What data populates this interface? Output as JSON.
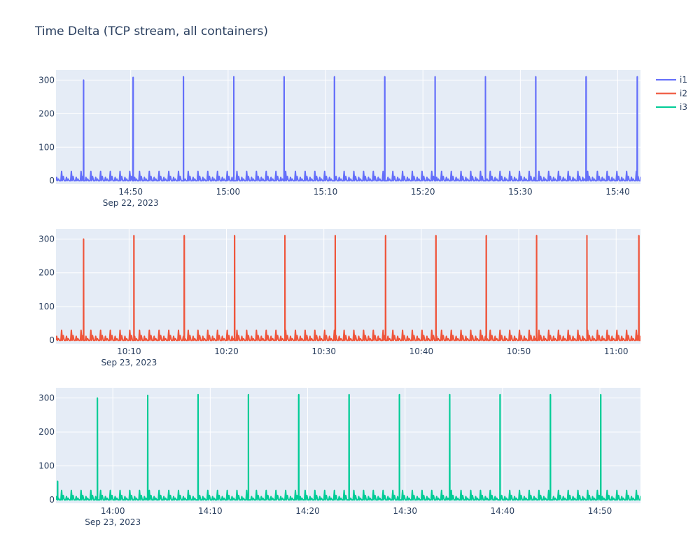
{
  "title": "Time Delta (TCP stream, all containers)",
  "colors": {
    "plot_bg": "#e5ecf6",
    "grid": "#ffffff",
    "text": "#2a3f5f",
    "series": [
      "#636efa",
      "#ef553b",
      "#00cc96"
    ]
  },
  "legend": {
    "placement": "top-right",
    "items": [
      {
        "name": "i1",
        "color": "#636efa"
      },
      {
        "name": "i2",
        "color": "#ef553b"
      },
      {
        "name": "i3",
        "color": "#00cc96"
      }
    ]
  },
  "chart_data": [
    {
      "type": "line",
      "series_name": "i1",
      "color": "#636efa",
      "date_label": "Sep 22, 2023",
      "x_range": [
        "14:42:20",
        "15:42:20"
      ],
      "x_ticks": [
        "14:50",
        "15:00",
        "15:10",
        "15:20",
        "15:30",
        "15:40"
      ],
      "y_ticks": [
        0,
        100,
        200,
        300
      ],
      "ylim": [
        -10,
        330
      ],
      "grid": true,
      "baseline_pattern": {
        "low": 0,
        "high": [
          10,
          28
        ],
        "period_seconds": 30
      },
      "spikes": [
        {
          "x": "14:45:10",
          "y": 300
        },
        {
          "x": "14:50:15",
          "y": 308
        },
        {
          "x": "14:55:25",
          "y": 310
        },
        {
          "x": "15:00:35",
          "y": 310
        },
        {
          "x": "15:05:45",
          "y": 310
        },
        {
          "x": "15:10:55",
          "y": 310
        },
        {
          "x": "15:16:05",
          "y": 310
        },
        {
          "x": "15:21:15",
          "y": 310
        },
        {
          "x": "15:26:25",
          "y": 310
        },
        {
          "x": "15:31:35",
          "y": 310
        },
        {
          "x": "15:36:45",
          "y": 310
        },
        {
          "x": "15:42:00",
          "y": 310
        }
      ]
    },
    {
      "type": "line",
      "series_name": "i2",
      "color": "#ef553b",
      "date_label": "Sep 23, 2023",
      "x_range": [
        "10:02:30",
        "11:02:30"
      ],
      "x_ticks": [
        "10:10",
        "10:20",
        "10:30",
        "10:40",
        "10:50",
        "11:00"
      ],
      "y_ticks": [
        0,
        100,
        200,
        300
      ],
      "ylim": [
        -10,
        330
      ],
      "grid": true,
      "baseline_pattern": {
        "low": 0,
        "high": [
          12,
          30
        ],
        "period_seconds": 30
      },
      "spikes": [
        {
          "x": "10:05:20",
          "y": 300
        },
        {
          "x": "10:10:30",
          "y": 310
        },
        {
          "x": "10:15:40",
          "y": 310
        },
        {
          "x": "10:20:50",
          "y": 310
        },
        {
          "x": "10:26:00",
          "y": 310
        },
        {
          "x": "10:31:10",
          "y": 310
        },
        {
          "x": "10:36:20",
          "y": 310
        },
        {
          "x": "10:41:30",
          "y": 310
        },
        {
          "x": "10:46:40",
          "y": 310
        },
        {
          "x": "10:51:50",
          "y": 310
        },
        {
          "x": "10:57:00",
          "y": 310
        },
        {
          "x": "11:02:20",
          "y": 310
        }
      ]
    },
    {
      "type": "line",
      "series_name": "i3",
      "color": "#00cc96",
      "date_label": "Sep 23, 2023",
      "x_range": [
        "13:54:10",
        "14:54:10"
      ],
      "x_ticks": [
        "14:00",
        "14:10",
        "14:20",
        "14:30",
        "14:40",
        "14:50"
      ],
      "y_ticks": [
        0,
        100,
        200,
        300
      ],
      "ylim": [
        -10,
        330
      ],
      "grid": true,
      "baseline_pattern": {
        "low": 0,
        "high": [
          10,
          28
        ],
        "period_seconds": 30
      },
      "spikes": [
        {
          "x": "13:54:20",
          "y": 55
        },
        {
          "x": "13:58:25",
          "y": 300
        },
        {
          "x": "14:03:35",
          "y": 308
        },
        {
          "x": "14:08:45",
          "y": 310
        },
        {
          "x": "14:13:55",
          "y": 310
        },
        {
          "x": "14:19:05",
          "y": 310
        },
        {
          "x": "14:24:15",
          "y": 310
        },
        {
          "x": "14:29:25",
          "y": 310
        },
        {
          "x": "14:34:35",
          "y": 310
        },
        {
          "x": "14:39:45",
          "y": 310
        },
        {
          "x": "14:44:55",
          "y": 310
        },
        {
          "x": "14:50:05",
          "y": 310
        }
      ]
    }
  ]
}
